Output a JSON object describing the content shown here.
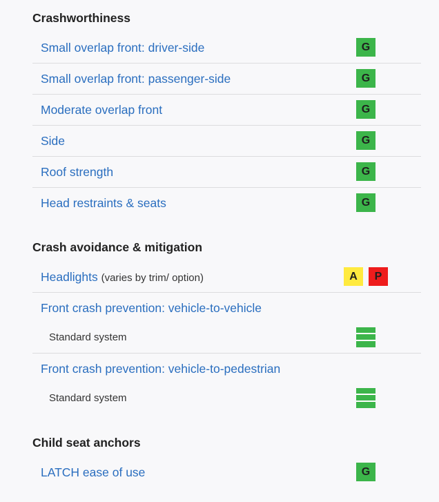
{
  "sections": [
    {
      "title": "Crashworthiness",
      "rows": [
        {
          "label": "Small overlap front: driver-side",
          "rating": "G",
          "rating_color": "#3cb54a"
        },
        {
          "label": "Small overlap front: passenger-side",
          "rating": "G",
          "rating_color": "#3cb54a"
        },
        {
          "label": "Moderate overlap front",
          "rating": "G",
          "rating_color": "#3cb54a"
        },
        {
          "label": "Side",
          "rating": "G",
          "rating_color": "#3cb54a"
        },
        {
          "label": "Roof strength",
          "rating": "G",
          "rating_color": "#3cb54a"
        },
        {
          "label": "Head restraints & seats",
          "rating": "G",
          "rating_color": "#3cb54a"
        }
      ]
    },
    {
      "title": "Crash avoidance & mitigation",
      "rows": [
        {
          "label": "Headlights",
          "note": "(varies by trim/ option)",
          "ratings": [
            {
              "rating": "A",
              "color": "#ffea3f"
            },
            {
              "rating": "P",
              "color": "#ee1c1c"
            }
          ]
        },
        {
          "label": "Front crash prevention: vehicle-to-vehicle",
          "sub_label": "Standard system",
          "sub_icon": "superior-rating-bars-icon",
          "sub_icon_color": "#3cb54a"
        },
        {
          "label": "Front crash prevention: vehicle-to-pedestrian",
          "sub_label": "Standard system",
          "sub_icon": "superior-rating-bars-icon",
          "sub_icon_color": "#3cb54a"
        }
      ]
    },
    {
      "title": "Child seat anchors",
      "rows": [
        {
          "label": "LATCH ease of use",
          "rating": "G",
          "rating_color": "#3cb54a"
        }
      ]
    }
  ],
  "colors": {
    "link": "#2a6ebf",
    "heading": "#222222",
    "divider": "#dcdcde",
    "background": "#f8f8fa"
  }
}
